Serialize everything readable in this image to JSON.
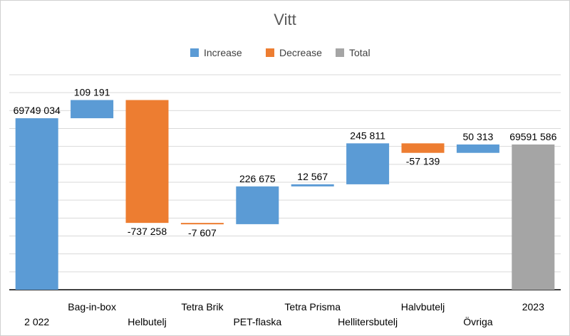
{
  "chart_data": {
    "type": "waterfall",
    "title": "Vitt",
    "legend": [
      {
        "name": "Increase",
        "color": "#5B9BD5"
      },
      {
        "name": "Decrease",
        "color": "#ED7D31"
      },
      {
        "name": "Total",
        "color": "#A5A5A5"
      }
    ],
    "legend_position": "top",
    "grid": true,
    "categories": [
      "2 022",
      "Bag-in-box",
      "Helbutelj",
      "Tetra Brik",
      "PET-flaska",
      "Tetra Prisma",
      "Hellitersbutelj",
      "Halvbutelj",
      "Övriga",
      "2023"
    ],
    "values": [
      69749034,
      109191,
      -737258,
      -7607,
      226675,
      12567,
      245811,
      -57139,
      50313,
      69591586
    ],
    "value_labels": [
      "69749 034",
      "109 191",
      "-737 258",
      "-7 607",
      "226 675",
      "12 567",
      "245 811",
      "-57 139",
      "50 313",
      "69591 586"
    ],
    "kinds": [
      "increase",
      "increase",
      "decrease",
      "decrease",
      "increase",
      "increase",
      "increase",
      "decrease",
      "increase",
      "total"
    ],
    "ylim": [
      68720000,
      70010000
    ]
  }
}
